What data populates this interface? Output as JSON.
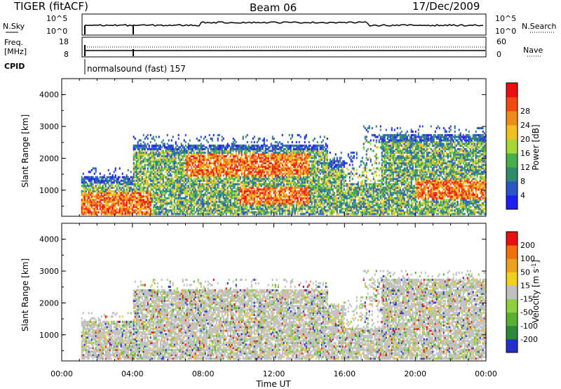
{
  "header": {
    "station": "TIGER (fitACF)",
    "beam": "Beam 06",
    "date": "17/Dec/2009"
  },
  "top_panels": {
    "nsky_label": "N.Sky",
    "nsky_max": "10^5",
    "nsky_min": "10^0",
    "nsearch_label": "N.Search",
    "nsearch_max": "10^5",
    "nsearch_min": "10^0",
    "freq_label_1": "Freq.",
    "freq_label_2": "[MHz]",
    "freq_max": "18",
    "freq_min": "8",
    "nave_label": "Nave",
    "nave_max": "60",
    "nave_min": "0",
    "cpid_label": "CPID",
    "cpid_text": "normalsound (fast) 157"
  },
  "chart_data": [
    {
      "type": "heatmap",
      "title": "",
      "ylabel": "Slant Range [km]",
      "ylim": [
        180,
        4500
      ],
      "y_ticks": [
        "1000",
        "2000",
        "3000",
        "4000"
      ],
      "xlim_hours": [
        0,
        24
      ],
      "colorbar": {
        "label": "Power [dB]",
        "ticks": [
          "4",
          "8",
          "12",
          "16",
          "20",
          "24",
          "28"
        ],
        "colors": [
          "#1e1ef0",
          "#2a55c8",
          "#2f8a6e",
          "#43b04a",
          "#a8d838",
          "#f0c020",
          "#f08a18",
          "#f04a10",
          "#e81010"
        ]
      }
    },
    {
      "type": "heatmap",
      "title": "",
      "xlabel": "Time UT",
      "ylabel": "Slant Range [km]",
      "ylim": [
        180,
        4500
      ],
      "y_ticks": [
        "1000",
        "2000",
        "3000",
        "4000"
      ],
      "x_ticks": [
        "00:00",
        "04:00",
        "08:00",
        "12:00",
        "16:00",
        "20:00",
        "00:00"
      ],
      "xlim_hours": [
        0,
        24
      ],
      "colorbar": {
        "label": "Velocity [m s",
        "label_sup": "-1",
        "label_end": "]",
        "ticks": [
          "200",
          "100",
          "50",
          "15",
          "-15",
          "-50",
          "-100",
          "-200"
        ],
        "colors": [
          "#2030c8",
          "#2a8a3a",
          "#58b030",
          "#90d040",
          "#c0c0c0",
          "#f0d020",
          "#f0a020",
          "#f07010",
          "#e81010"
        ]
      }
    }
  ]
}
